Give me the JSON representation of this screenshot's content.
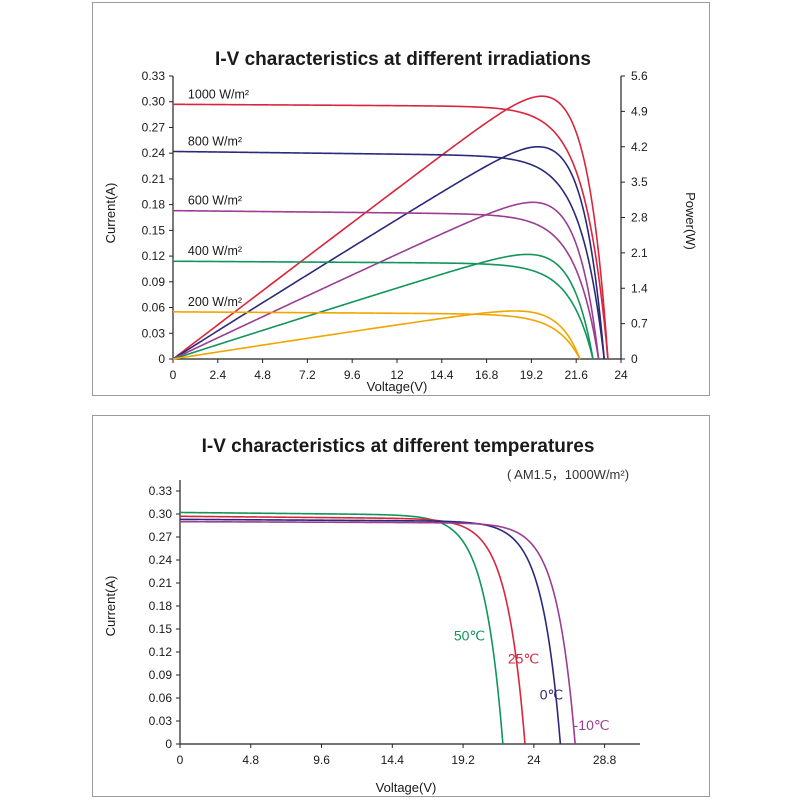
{
  "chart_data": [
    {
      "type": "line",
      "title": "I-V characteristics at different irradiations",
      "xlabel": "Voltage(V)",
      "ylabel": "Current(A)",
      "y2label": "Power(W)",
      "xlim": [
        0,
        24
      ],
      "ylim": [
        0,
        0.33
      ],
      "y2lim": [
        0,
        5.6
      ],
      "xticks": [
        "0",
        "2.4",
        "4.8",
        "7.2",
        "9.6",
        "12",
        "14.4",
        "16.8",
        "19.2",
        "21.6",
        "24"
      ],
      "xtick_values": [
        0,
        2.4,
        4.8,
        7.2,
        9.6,
        12,
        14.4,
        16.8,
        19.2,
        21.6,
        24
      ],
      "yticks": [
        "0",
        "0.03",
        "0.06",
        "0.09",
        "0.12",
        "0.15",
        "0.18",
        "0.21",
        "0.24",
        "0.27",
        "0.30",
        "0.33"
      ],
      "ytick_values": [
        0,
        0.03,
        0.06,
        0.09,
        0.12,
        0.15,
        0.18,
        0.21,
        0.24,
        0.27,
        0.3,
        0.33
      ],
      "y2ticks": [
        "0",
        "0.7",
        "1.4",
        "2.1",
        "2.8",
        "3.5",
        "4.2",
        "4.9",
        "5.6"
      ],
      "y2tick_values": [
        0,
        0.7,
        1.4,
        2.1,
        2.8,
        3.5,
        4.2,
        4.9,
        5.6
      ],
      "grid": false,
      "series": [
        {
          "name": "1000 W/m²",
          "color": "#d7263d",
          "isc": 0.297,
          "isc_knee": 0.294,
          "voc": 23.3,
          "pmax": 5.2,
          "vmp": 19.0
        },
        {
          "name": "800 W/m²",
          "color": "#2b2a7a",
          "isc": 0.242,
          "isc_knee": 0.236,
          "voc": 23.1,
          "pmax": 4.2,
          "vmp": 19.0
        },
        {
          "name": "600 W/m²",
          "color": "#9a3d93",
          "isc": 0.173,
          "isc_knee": 0.168,
          "voc": 22.8,
          "pmax": 3.1,
          "vmp": 19.0
        },
        {
          "name": "400 W/m²",
          "color": "#12955a",
          "isc": 0.114,
          "isc_knee": 0.111,
          "voc": 22.5,
          "pmax": 2.07,
          "vmp": 19.0
        },
        {
          "name": "200 W/m²",
          "color": "#f0a500",
          "isc": 0.055,
          "isc_knee": 0.052,
          "voc": 21.8,
          "pmax": 0.95,
          "vmp": 19.0
        }
      ]
    },
    {
      "type": "line",
      "title": "I-V characteristics at different temperatures",
      "subtitle": "( AM1.5，1000W/m²)",
      "xlabel": "Voltage(V)",
      "ylabel": "Current(A)",
      "xlim": [
        0,
        31.2
      ],
      "ylim": [
        0,
        0.33
      ],
      "xticks": [
        "0",
        "4.8",
        "9.6",
        "14.4",
        "19.2",
        "24",
        "28.8"
      ],
      "xtick_values": [
        0,
        4.8,
        9.6,
        14.4,
        19.2,
        24,
        28.8
      ],
      "yticks": [
        "0",
        "0.03",
        "0.06",
        "0.09",
        "0.12",
        "0.15",
        "0.18",
        "0.21",
        "0.24",
        "0.27",
        "0.30",
        "0.33"
      ],
      "ytick_values": [
        0,
        0.03,
        0.06,
        0.09,
        0.12,
        0.15,
        0.18,
        0.21,
        0.24,
        0.27,
        0.3,
        0.33
      ],
      "grid": false,
      "series": [
        {
          "name": "50℃",
          "color": "#12955a",
          "isc": 0.302,
          "isc_knee": 0.298,
          "voc": 21.9
        },
        {
          "name": "25℃",
          "color": "#d7263d",
          "isc": 0.297,
          "isc_knee": 0.293,
          "voc": 23.4
        },
        {
          "name": "0℃",
          "color": "#2b2a7a",
          "isc": 0.293,
          "isc_knee": 0.29,
          "voc": 25.8
        },
        {
          "name": "-10℃",
          "color": "#9a3d93",
          "isc": 0.29,
          "isc_knee": 0.288,
          "voc": 26.8
        }
      ]
    }
  ]
}
